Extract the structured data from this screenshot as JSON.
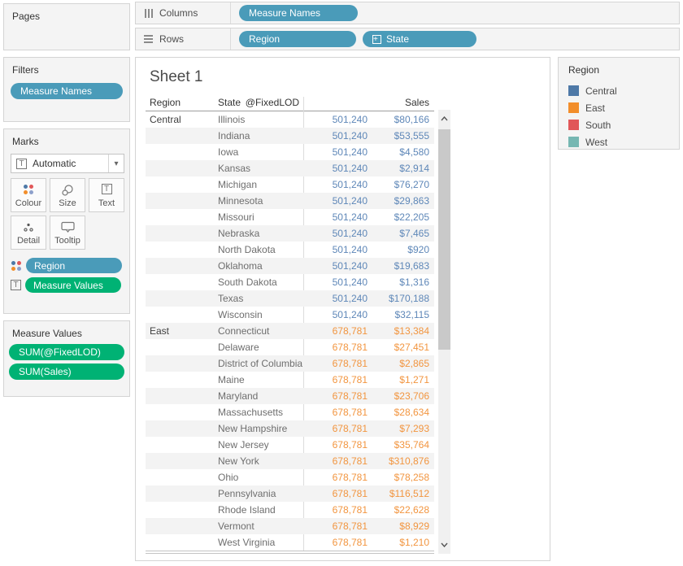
{
  "shelves": {
    "columns": {
      "label": "Columns",
      "pills": [
        {
          "label": "Measure Names"
        }
      ]
    },
    "rows": {
      "label": "Rows",
      "pills": [
        {
          "label": "Region"
        },
        {
          "label": "State",
          "icon": "expand-plus-icon"
        }
      ]
    }
  },
  "panels": {
    "pages": {
      "title": "Pages"
    },
    "filters": {
      "title": "Filters",
      "pills": [
        {
          "label": "Measure Names"
        }
      ]
    },
    "marks": {
      "title": "Marks",
      "mark_type": "Automatic",
      "buttons": [
        {
          "label": "Colour",
          "icon": "colour-dots-icon"
        },
        {
          "label": "Size",
          "icon": "size-circles-icon"
        },
        {
          "label": "Text",
          "icon": "text-t-icon"
        },
        {
          "label": "Detail",
          "icon": "detail-dots-icon"
        },
        {
          "label": "Tooltip",
          "icon": "tooltip-bubble-icon"
        }
      ],
      "pills": [
        {
          "label": "Region",
          "icon": "colour-dots-icon",
          "color": "teal"
        },
        {
          "label": "Measure Values",
          "icon": "text-t-icon",
          "color": "green"
        }
      ]
    },
    "measure_values": {
      "title": "Measure Values",
      "pills": [
        {
          "label": "SUM(@FixedLOD)"
        },
        {
          "label": "SUM(Sales)"
        }
      ]
    }
  },
  "sheet": {
    "title": "Sheet 1",
    "columns": [
      "Region",
      "State",
      "@FixedLOD",
      "Sales"
    ],
    "groups": [
      {
        "region": "Central",
        "value_color": "#5e87b8",
        "rows": [
          {
            "state": "Illinois",
            "fixedlod": "501,240",
            "sales": "$80,166"
          },
          {
            "state": "Indiana",
            "fixedlod": "501,240",
            "sales": "$53,555"
          },
          {
            "state": "Iowa",
            "fixedlod": "501,240",
            "sales": "$4,580"
          },
          {
            "state": "Kansas",
            "fixedlod": "501,240",
            "sales": "$2,914"
          },
          {
            "state": "Michigan",
            "fixedlod": "501,240",
            "sales": "$76,270"
          },
          {
            "state": "Minnesota",
            "fixedlod": "501,240",
            "sales": "$29,863"
          },
          {
            "state": "Missouri",
            "fixedlod": "501,240",
            "sales": "$22,205"
          },
          {
            "state": "Nebraska",
            "fixedlod": "501,240",
            "sales": "$7,465"
          },
          {
            "state": "North Dakota",
            "fixedlod": "501,240",
            "sales": "$920"
          },
          {
            "state": "Oklahoma",
            "fixedlod": "501,240",
            "sales": "$19,683"
          },
          {
            "state": "South Dakota",
            "fixedlod": "501,240",
            "sales": "$1,316"
          },
          {
            "state": "Texas",
            "fixedlod": "501,240",
            "sales": "$170,188"
          },
          {
            "state": "Wisconsin",
            "fixedlod": "501,240",
            "sales": "$32,115"
          }
        ]
      },
      {
        "region": "East",
        "value_color": "#f2953f",
        "rows": [
          {
            "state": "Connecticut",
            "fixedlod": "678,781",
            "sales": "$13,384"
          },
          {
            "state": "Delaware",
            "fixedlod": "678,781",
            "sales": "$27,451"
          },
          {
            "state": "District of Columbia",
            "fixedlod": "678,781",
            "sales": "$2,865"
          },
          {
            "state": "Maine",
            "fixedlod": "678,781",
            "sales": "$1,271"
          },
          {
            "state": "Maryland",
            "fixedlod": "678,781",
            "sales": "$23,706"
          },
          {
            "state": "Massachusetts",
            "fixedlod": "678,781",
            "sales": "$28,634"
          },
          {
            "state": "New Hampshire",
            "fixedlod": "678,781",
            "sales": "$7,293"
          },
          {
            "state": "New Jersey",
            "fixedlod": "678,781",
            "sales": "$35,764"
          },
          {
            "state": "New York",
            "fixedlod": "678,781",
            "sales": "$310,876"
          },
          {
            "state": "Ohio",
            "fixedlod": "678,781",
            "sales": "$78,258"
          },
          {
            "state": "Pennsylvania",
            "fixedlod": "678,781",
            "sales": "$116,512"
          },
          {
            "state": "Rhode Island",
            "fixedlod": "678,781",
            "sales": "$22,628"
          },
          {
            "state": "Vermont",
            "fixedlod": "678,781",
            "sales": "$8,929"
          },
          {
            "state": "West Virginia",
            "fixedlod": "678,781",
            "sales": "$1,210"
          }
        ]
      }
    ]
  },
  "legend": {
    "title": "Region",
    "items": [
      {
        "label": "Central",
        "color": "#4e79a7"
      },
      {
        "label": "East",
        "color": "#f28e2b"
      },
      {
        "label": "South",
        "color": "#e15759"
      },
      {
        "label": "West",
        "color": "#76b7b2"
      }
    ]
  },
  "colors": {
    "pill_teal": "#4a9bb9",
    "pill_green": "#00b274"
  },
  "icons": {
    "columns_shelf": "columns-bars-icon",
    "rows_shelf": "rows-lines-icon",
    "state_pill": "expand-plus-icon",
    "dropdown": "caret-down-icon",
    "scroll": [
      "chevron-up-icon",
      "chevron-down-icon"
    ]
  }
}
